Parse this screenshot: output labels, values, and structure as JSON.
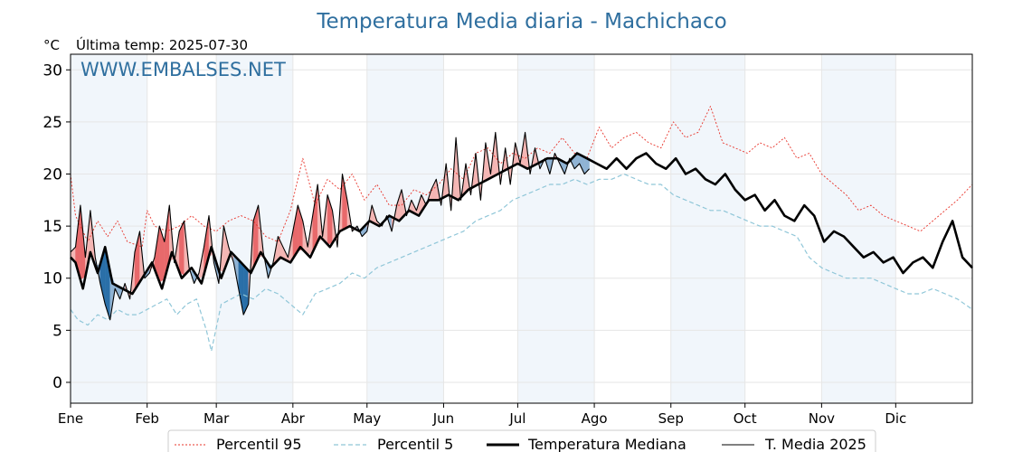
{
  "chart_data": {
    "type": "line",
    "title": "Temperatura Media diaria - Machichaco",
    "unit_label": "°C",
    "last_temp_label": "Última temp: 2025-07-30",
    "watermark": "WWW.EMBALSES.NET",
    "ylim": [
      -2,
      31.5
    ],
    "yticks": [
      0,
      5,
      10,
      15,
      20,
      25,
      30
    ],
    "xlim": [
      1,
      366
    ],
    "x_month_labels": [
      "Ene",
      "Feb",
      "Mar",
      "Abr",
      "May",
      "Jun",
      "Jul",
      "Ago",
      "Sep",
      "Oct",
      "Nov",
      "Dic"
    ],
    "x_month_start_days": [
      1,
      32,
      60,
      91,
      121,
      152,
      182,
      213,
      244,
      274,
      305,
      335
    ],
    "grid": true,
    "shaded_months": [
      "Ene",
      "Mar",
      "May",
      "Jul",
      "Sep",
      "Nov"
    ],
    "legend_position": "bottom",
    "series": [
      {
        "name": "Percentil 95",
        "style": "dotted",
        "color": "#e8332a",
        "x": [
          1,
          3,
          8,
          12,
          16,
          20,
          24,
          30,
          32,
          35,
          40,
          45,
          50,
          55,
          60,
          65,
          70,
          75,
          80,
          85,
          90,
          95,
          100,
          105,
          110,
          115,
          120,
          125,
          130,
          135,
          140,
          145,
          150,
          155,
          160,
          165,
          170,
          175,
          180,
          185,
          190,
          195,
          200,
          205,
          210,
          215,
          220,
          225,
          230,
          235,
          240,
          245,
          250,
          255,
          260,
          265,
          270,
          275,
          280,
          285,
          290,
          295,
          300,
          305,
          310,
          315,
          320,
          325,
          330,
          335,
          340,
          345,
          350,
          355,
          360,
          366
        ],
        "values": [
          20.0,
          16.0,
          13.5,
          15.5,
          14.0,
          15.5,
          13.5,
          13.0,
          16.5,
          15.0,
          14.5,
          15.0,
          16.0,
          15.0,
          14.5,
          15.5,
          16.0,
          15.5,
          14.0,
          13.5,
          16.5,
          21.5,
          17.0,
          19.5,
          18.5,
          20.0,
          17.5,
          19.0,
          17.0,
          17.0,
          18.5,
          18.0,
          19.0,
          20.5,
          19.5,
          22.0,
          22.5,
          21.0,
          22.0,
          21.5,
          22.5,
          22.0,
          23.5,
          22.0,
          21.5,
          24.5,
          22.5,
          23.5,
          24.0,
          23.0,
          22.5,
          25.0,
          23.5,
          24.0,
          26.5,
          23.0,
          22.5,
          22.0,
          23.0,
          22.5,
          23.5,
          21.5,
          22.0,
          20.0,
          19.0,
          18.0,
          16.5,
          17.0,
          16.0,
          15.5,
          15.0,
          14.5,
          15.5,
          16.5,
          17.5,
          19.0
        ]
      },
      {
        "name": "Percentil 5",
        "style": "dashed",
        "color": "#8fc6d8",
        "x": [
          1,
          4,
          8,
          12,
          16,
          20,
          24,
          28,
          32,
          36,
          40,
          44,
          48,
          52,
          56,
          58,
          62,
          66,
          70,
          75,
          80,
          85,
          90,
          95,
          100,
          105,
          110,
          115,
          120,
          125,
          130,
          135,
          140,
          145,
          150,
          155,
          160,
          165,
          170,
          175,
          180,
          185,
          190,
          195,
          200,
          205,
          210,
          215,
          220,
          225,
          230,
          235,
          240,
          245,
          250,
          255,
          260,
          265,
          270,
          275,
          280,
          285,
          290,
          295,
          300,
          305,
          310,
          315,
          320,
          325,
          330,
          335,
          340,
          345,
          350,
          355,
          360,
          366
        ],
        "values": [
          7.0,
          6.0,
          5.5,
          6.5,
          6.0,
          7.0,
          6.5,
          6.5,
          7.0,
          7.5,
          8.0,
          6.5,
          7.5,
          8.0,
          5.0,
          3.0,
          7.5,
          8.0,
          8.5,
          8.0,
          9.0,
          8.5,
          7.5,
          6.5,
          8.5,
          9.0,
          9.5,
          10.5,
          10.0,
          11.0,
          11.5,
          12.0,
          12.5,
          13.0,
          13.5,
          14.0,
          14.5,
          15.5,
          16.0,
          16.5,
          17.5,
          18.0,
          18.5,
          19.0,
          19.0,
          19.5,
          19.0,
          19.5,
          19.5,
          20.0,
          19.5,
          19.0,
          19.0,
          18.0,
          17.5,
          17.0,
          16.5,
          16.5,
          16.0,
          15.5,
          15.0,
          15.0,
          14.5,
          14.0,
          12.0,
          11.0,
          10.5,
          10.0,
          10.0,
          10.0,
          9.5,
          9.0,
          8.5,
          8.5,
          9.0,
          8.5,
          8.0,
          7.0
        ]
      },
      {
        "name": "Temperatura Mediana",
        "style": "solid-thick",
        "color": "#000000",
        "x": [
          1,
          3,
          6,
          9,
          12,
          15,
          18,
          22,
          26,
          30,
          34,
          38,
          42,
          46,
          50,
          54,
          58,
          62,
          66,
          70,
          74,
          78,
          82,
          86,
          90,
          94,
          98,
          102,
          106,
          110,
          114,
          118,
          122,
          126,
          130,
          134,
          138,
          142,
          146,
          150,
          154,
          158,
          162,
          166,
          170,
          174,
          178,
          182,
          186,
          190,
          194,
          198,
          202,
          206,
          210,
          214,
          218,
          222,
          226,
          230,
          234,
          238,
          242,
          246,
          250,
          254,
          258,
          262,
          266,
          270,
          274,
          278,
          282,
          286,
          290,
          294,
          298,
          302,
          306,
          310,
          314,
          318,
          322,
          326,
          330,
          334,
          338,
          342,
          346,
          350,
          354,
          358,
          362,
          366
        ],
        "values": [
          12.0,
          11.5,
          9.0,
          12.5,
          10.5,
          13.0,
          9.5,
          9.0,
          8.5,
          10.0,
          11.5,
          9.0,
          12.5,
          10.0,
          11.0,
          9.5,
          13.0,
          10.0,
          12.5,
          11.5,
          10.5,
          12.5,
          11.0,
          12.0,
          11.5,
          13.0,
          12.0,
          14.0,
          13.0,
          14.5,
          15.0,
          14.5,
          15.5,
          15.0,
          16.0,
          15.5,
          16.5,
          16.0,
          17.5,
          17.5,
          18.0,
          17.5,
          18.5,
          19.0,
          19.5,
          20.0,
          20.5,
          21.0,
          20.5,
          21.0,
          21.5,
          21.5,
          21.0,
          22.0,
          21.5,
          21.0,
          20.5,
          21.5,
          20.5,
          21.5,
          22.0,
          21.0,
          20.5,
          21.5,
          20.0,
          20.5,
          19.5,
          19.0,
          20.0,
          18.5,
          17.5,
          18.0,
          16.5,
          17.5,
          16.0,
          15.5,
          17.0,
          16.0,
          13.5,
          14.5,
          14.0,
          13.0,
          12.0,
          12.5,
          11.5,
          12.0,
          10.5,
          11.5,
          12.0,
          11.0,
          13.5,
          15.5,
          12.0,
          11.0
        ]
      },
      {
        "name": "T. Media 2025",
        "style": "solid-thin",
        "color": "#000000",
        "x": [
          1,
          3,
          5,
          7,
          9,
          11,
          13,
          15,
          17,
          19,
          21,
          23,
          25,
          27,
          29,
          31,
          33,
          35,
          37,
          39,
          41,
          43,
          45,
          47,
          49,
          51,
          53,
          55,
          57,
          59,
          61,
          63,
          65,
          67,
          69,
          71,
          73,
          75,
          77,
          79,
          81,
          83,
          85,
          87,
          89,
          91,
          93,
          95,
          97,
          99,
          101,
          103,
          105,
          107,
          109,
          111,
          113,
          115,
          117,
          119,
          121,
          123,
          125,
          127,
          129,
          131,
          133,
          135,
          137,
          139,
          141,
          143,
          145,
          147,
          149,
          151,
          153,
          155,
          157,
          159,
          161,
          163,
          165,
          167,
          169,
          171,
          173,
          175,
          177,
          179,
          181,
          183,
          185,
          187,
          189,
          191,
          193,
          195,
          197,
          199,
          201,
          203,
          205,
          207,
          209,
          211
        ],
        "values": [
          12.5,
          13.0,
          17.0,
          12.0,
          16.5,
          12.0,
          9.5,
          7.5,
          6.0,
          9.0,
          8.0,
          9.5,
          8.0,
          12.5,
          14.5,
          10.0,
          10.5,
          12.0,
          15.0,
          13.5,
          17.0,
          11.5,
          14.5,
          15.5,
          11.0,
          9.5,
          10.5,
          13.0,
          16.0,
          11.5,
          9.5,
          15.0,
          13.0,
          11.5,
          9.0,
          6.5,
          7.5,
          15.5,
          17.0,
          12.5,
          10.0,
          11.5,
          14.0,
          13.0,
          12.0,
          14.5,
          17.0,
          15.5,
          13.0,
          16.0,
          19.0,
          14.0,
          18.0,
          16.5,
          13.0,
          20.0,
          17.5,
          14.5,
          15.0,
          14.0,
          14.5,
          17.0,
          15.5,
          15.0,
          16.0,
          14.5,
          17.0,
          18.5,
          16.0,
          17.5,
          16.5,
          18.0,
          17.0,
          18.5,
          19.5,
          17.0,
          21.0,
          16.5,
          23.5,
          17.5,
          21.0,
          18.0,
          22.0,
          17.5,
          23.0,
          20.0,
          24.0,
          19.0,
          22.5,
          19.0,
          23.0,
          21.0,
          24.0,
          20.0,
          22.5,
          20.5,
          21.5,
          20.0,
          22.0,
          21.0,
          20.0,
          21.5,
          20.5,
          21.0,
          20.0,
          20.5
        ]
      }
    ]
  }
}
